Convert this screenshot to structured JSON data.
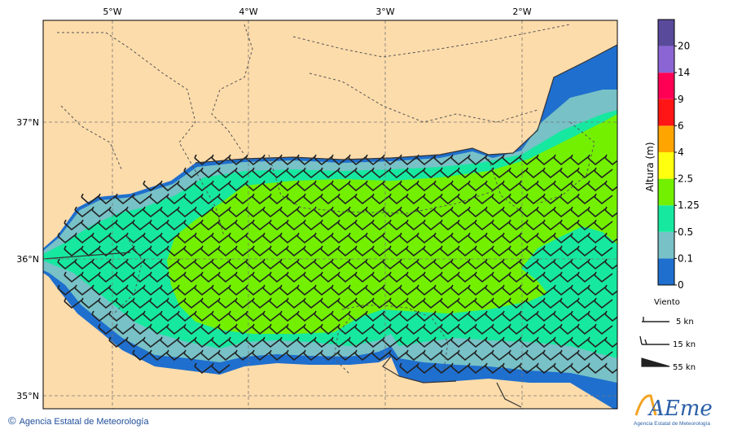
{
  "map": {
    "lon_labels": [
      "5°W",
      "4°W",
      "3°W",
      "2°W"
    ],
    "lat_labels": [
      "37°N",
      "36°N",
      "35°N"
    ]
  },
  "colorbar": {
    "title": "Altura (m)",
    "levels": [
      "0",
      "0.1",
      "0.5",
      "1.25",
      "2.5",
      "4",
      "6",
      "9",
      "14",
      "20"
    ],
    "colors": [
      "#1f6fce",
      "#77c1c7",
      "#17e8a0",
      "#73f000",
      "#ffff10",
      "#ffa500",
      "#ff1515",
      "#ff0055",
      "#8b65d4",
      "#5a4a9c"
    ]
  },
  "wind_legend": {
    "title": "Viento",
    "items": [
      "5 kn",
      "15 kn",
      "55 kn"
    ]
  },
  "credit": {
    "symbol": "©",
    "text": "Agencia Estatal de Meteorología"
  },
  "logo": {
    "name": "AEmet",
    "subtitle": "Agencia Estatal de Meteorología"
  },
  "palette": {
    "land": "#fddcab",
    "deep_blue": "#1f6fce",
    "teal": "#77c1c7",
    "green": "#17e8a0",
    "lime": "#73f000"
  }
}
